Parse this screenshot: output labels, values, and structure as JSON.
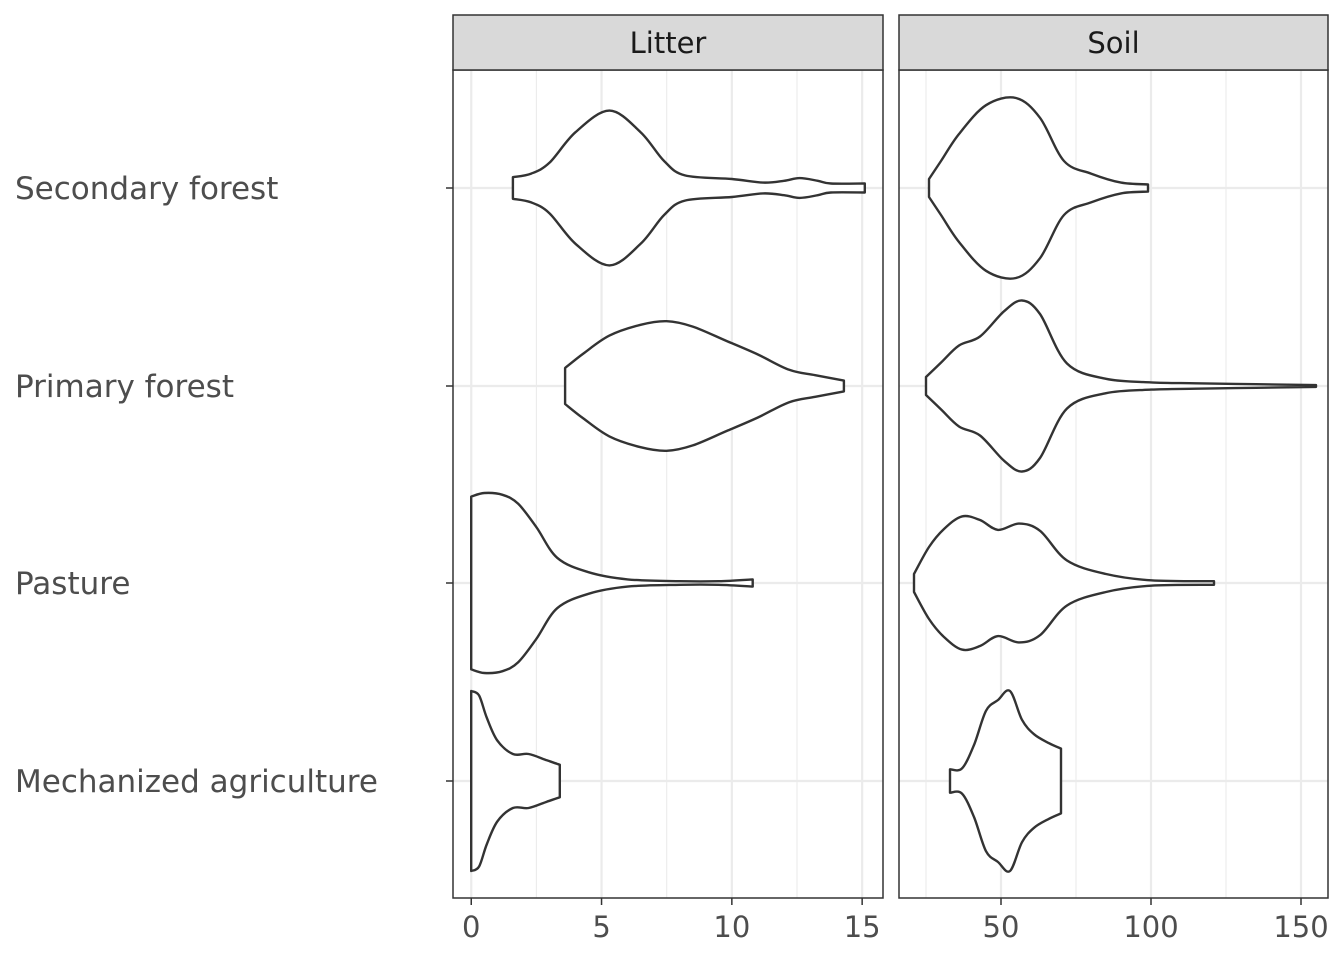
{
  "chart_data": {
    "type": "violin",
    "orientation": "horizontal",
    "categories": [
      "Mechanized agriculture",
      "Pasture",
      "Primary forest",
      "Secondary forest"
    ],
    "grid": true,
    "legend": "none",
    "colors": {
      "outline": "#333333",
      "fill": "#ffffff",
      "strip": "#d9d9d9",
      "grid": "#ebebeb"
    },
    "facets": [
      {
        "strip_label": "Litter",
        "xlim": [
          -0.7,
          15.8
        ],
        "major_ticks": [
          0,
          5,
          10,
          15
        ],
        "minor_ticks": [
          2.5,
          7.5,
          12.5
        ],
        "tick_labels": [
          "0",
          "5",
          "10",
          "15"
        ],
        "violins": {
          "Secondary forest": [
            [
              1.6,
              0.12
            ],
            [
              2.3,
              0.16
            ],
            [
              3.0,
              0.28
            ],
            [
              4.0,
              0.62
            ],
            [
              5.3,
              0.86
            ],
            [
              6.5,
              0.62
            ],
            [
              7.4,
              0.3
            ],
            [
              8.2,
              0.14
            ],
            [
              10.0,
              0.1
            ],
            [
              11.2,
              0.06
            ],
            [
              12.0,
              0.08
            ],
            [
              12.6,
              0.11
            ],
            [
              13.3,
              0.08
            ],
            [
              13.8,
              0.05
            ],
            [
              15.1,
              0.05
            ]
          ],
          "Primary forest": [
            [
              3.6,
              0.2
            ],
            [
              4.3,
              0.36
            ],
            [
              5.3,
              0.56
            ],
            [
              6.5,
              0.68
            ],
            [
              7.5,
              0.72
            ],
            [
              8.5,
              0.66
            ],
            [
              9.8,
              0.5
            ],
            [
              11.0,
              0.35
            ],
            [
              12.2,
              0.18
            ],
            [
              13.2,
              0.12
            ],
            [
              14.3,
              0.06
            ]
          ],
          "Pasture": [
            [
              0.0,
              0.96
            ],
            [
              0.5,
              1.0
            ],
            [
              1.2,
              0.98
            ],
            [
              1.8,
              0.88
            ],
            [
              2.5,
              0.62
            ],
            [
              3.3,
              0.28
            ],
            [
              4.5,
              0.12
            ],
            [
              6.0,
              0.04
            ],
            [
              8.0,
              0.02
            ],
            [
              9.5,
              0.02
            ],
            [
              10.8,
              0.04
            ]
          ],
          "Mechanized agriculture": [
            [
              0.0,
              1.0
            ],
            [
              0.3,
              0.95
            ],
            [
              0.6,
              0.7
            ],
            [
              1.0,
              0.45
            ],
            [
              1.6,
              0.3
            ],
            [
              2.2,
              0.3
            ],
            [
              2.9,
              0.23
            ],
            [
              3.4,
              0.18
            ]
          ]
        }
      },
      {
        "strip_label": "Soil",
        "xlim": [
          16,
          159
        ],
        "major_ticks": [
          50,
          100,
          150
        ],
        "minor_ticks": [
          25,
          75,
          125
        ],
        "tick_labels": [
          "50",
          "100",
          "150"
        ],
        "violins": {
          "Secondary forest": [
            [
              26,
              0.1
            ],
            [
              30,
              0.3
            ],
            [
              36,
              0.6
            ],
            [
              45,
              0.92
            ],
            [
              55,
              1.0
            ],
            [
              63,
              0.78
            ],
            [
              71,
              0.3
            ],
            [
              80,
              0.16
            ],
            [
              90,
              0.06
            ],
            [
              99,
              0.04
            ]
          ],
          "Primary forest": [
            [
              25,
              0.1
            ],
            [
              30,
              0.26
            ],
            [
              36,
              0.45
            ],
            [
              43,
              0.55
            ],
            [
              51,
              0.83
            ],
            [
              57,
              0.95
            ],
            [
              63,
              0.8
            ],
            [
              72,
              0.25
            ],
            [
              85,
              0.08
            ],
            [
              100,
              0.04
            ],
            [
              115,
              0.03
            ],
            [
              135,
              0.02
            ],
            [
              155,
              0.01
            ]
          ],
          "Pasture": [
            [
              21,
              0.1
            ],
            [
              26,
              0.4
            ],
            [
              31,
              0.6
            ],
            [
              37,
              0.74
            ],
            [
              43,
              0.7
            ],
            [
              49,
              0.59
            ],
            [
              56,
              0.66
            ],
            [
              63,
              0.58
            ],
            [
              72,
              0.25
            ],
            [
              85,
              0.1
            ],
            [
              100,
              0.03
            ],
            [
              121,
              0.02
            ]
          ],
          "Mechanized agriculture": [
            [
              33,
              0.13
            ],
            [
              37,
              0.14
            ],
            [
              41,
              0.4
            ],
            [
              45,
              0.78
            ],
            [
              49,
              0.9
            ],
            [
              53,
              1.0
            ],
            [
              57,
              0.68
            ],
            [
              61,
              0.52
            ],
            [
              66,
              0.42
            ],
            [
              70,
              0.36
            ]
          ]
        }
      }
    ]
  }
}
